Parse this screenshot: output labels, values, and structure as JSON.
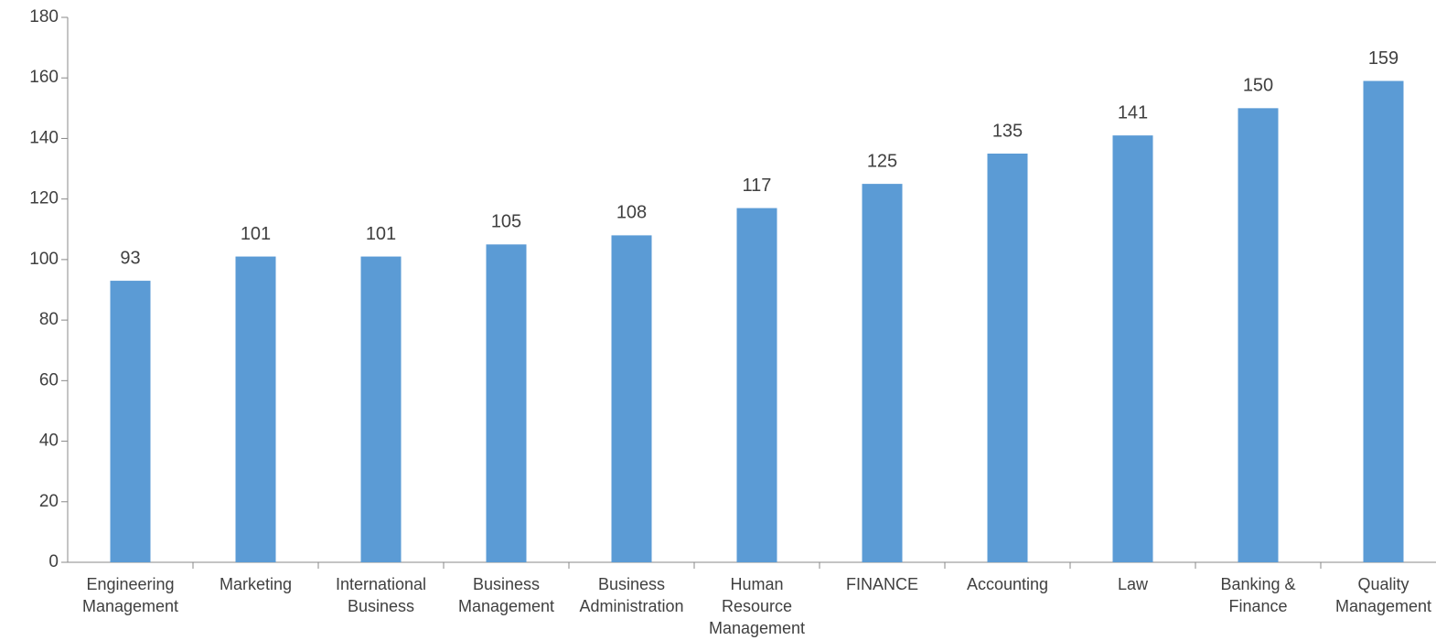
{
  "chart_data": {
    "type": "bar",
    "categories": [
      "Engineering Management",
      "Marketing",
      "International Business",
      "Business Management",
      "Business Administration",
      "Human Resource Management",
      "FINANCE",
      "Accounting",
      "Law",
      "Banking & Finance",
      "Quality Management"
    ],
    "values": [
      93,
      101,
      101,
      105,
      108,
      117,
      125,
      135,
      141,
      150,
      159
    ],
    "color": "#5b9bd5",
    "ylim": [
      0,
      180
    ],
    "yticks": [
      0,
      20,
      40,
      60,
      80,
      100,
      120,
      140,
      160,
      180
    ],
    "grid": false
  }
}
